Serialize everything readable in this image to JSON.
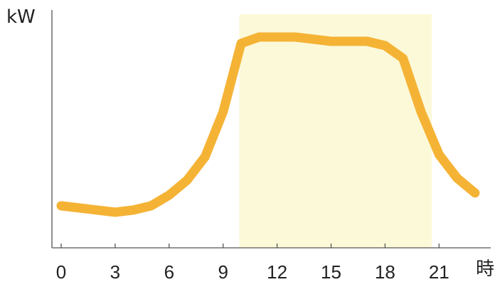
{
  "chart_data": {
    "type": "line",
    "title": "",
    "xlabel": "時",
    "ylabel": "kW",
    "xlim": [
      -0.5,
      23.5
    ],
    "ylim": [
      0,
      100
    ],
    "x_ticks": [
      0,
      3,
      6,
      9,
      12,
      15,
      18,
      21
    ],
    "y_ticks": [],
    "grid": false,
    "legend": "none",
    "highlight_band": {
      "x_start": 9.9,
      "x_end": 20.6,
      "color": "#fcf9d9"
    },
    "series": [
      {
        "color": "#f5b335",
        "x": [
          0,
          1,
          2,
          3,
          4,
          5,
          6,
          7,
          8,
          9,
          10,
          11,
          12,
          13,
          14,
          15,
          16,
          17,
          18,
          19,
          20,
          21,
          22,
          23
        ],
        "y": [
          16,
          15,
          14,
          13,
          14,
          16,
          21,
          28,
          39,
          60,
          92,
          95,
          95,
          95,
          94,
          93,
          93,
          93,
          91,
          85,
          60,
          40,
          29,
          22
        ]
      }
    ]
  }
}
